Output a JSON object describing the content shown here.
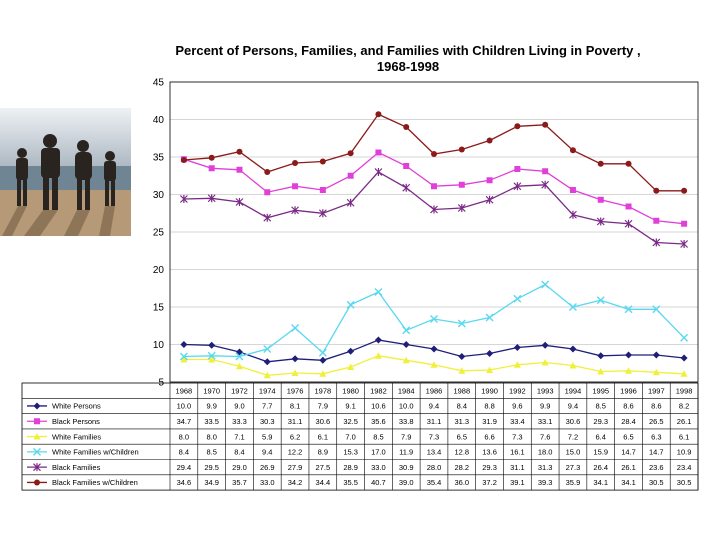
{
  "chart_data": {
    "type": "line",
    "title_line1": "Percent of Persons, Families, and Families with Children Living in Poverty ,",
    "title_line2": "1968-1998",
    "xlabel": "",
    "ylabel": "",
    "ylim": [
      5,
      45
    ],
    "yticks": [
      "45",
      "40",
      "35",
      "30",
      "25",
      "20",
      "15",
      "10",
      "5"
    ],
    "categories": [
      "1968",
      "1970",
      "1972",
      "1974",
      "1976",
      "1978",
      "1980",
      "1982",
      "1984",
      "1986",
      "1988",
      "1990",
      "1992",
      "1993",
      "1994",
      "1995",
      "1996",
      "1997",
      "1998"
    ],
    "series": [
      {
        "name": "White Persons",
        "color": "#1f1f7a",
        "marker": "diamond",
        "values": [
          10.0,
          9.9,
          9.0,
          7.7,
          8.1,
          7.9,
          9.1,
          10.6,
          10.0,
          9.4,
          8.4,
          8.8,
          9.6,
          9.9,
          9.4,
          8.5,
          8.6,
          8.6,
          8.2
        ],
        "labels": [
          "10.0",
          "9.9",
          "9.0",
          "7.7",
          "8.1",
          "7.9",
          "9.1",
          "10.6",
          "10.0",
          "9.4",
          "8.4",
          "8.8",
          "9.6",
          "9.9",
          "9.4",
          "8.5",
          "8.6",
          "8.6",
          "8.2"
        ]
      },
      {
        "name": "Black Persons",
        "color": "#e040d8",
        "marker": "square",
        "values": [
          34.7,
          33.5,
          33.3,
          30.3,
          31.1,
          30.6,
          32.5,
          35.6,
          33.8,
          31.1,
          31.3,
          31.9,
          33.4,
          33.1,
          30.6,
          29.3,
          28.4,
          26.5,
          26.1
        ],
        "labels": [
          "34.7",
          "33.5",
          "33.3",
          "30.3",
          "31.1",
          "30.6",
          "32.5",
          "35.6",
          "33.8",
          "31.1",
          "31.3",
          "31.9",
          "33.4",
          "33.1",
          "30.6",
          "29.3",
          "28.4",
          "26.5",
          "26.1"
        ]
      },
      {
        "name": "White Families",
        "color": "#f0f03a",
        "marker": "triangle",
        "values": [
          8.0,
          8.0,
          7.1,
          5.9,
          6.2,
          6.1,
          7.0,
          8.5,
          7.9,
          7.3,
          6.5,
          6.6,
          7.3,
          7.6,
          7.2,
          6.4,
          6.5,
          6.3,
          6.1
        ],
        "labels": [
          "8.0",
          "8.0",
          "7.1",
          "5.9",
          "6.2",
          "6.1",
          "7.0",
          "8.5",
          "7.9",
          "7.3",
          "6.5",
          "6.6",
          "7.3",
          "7.6",
          "7.2",
          "6.4",
          "6.5",
          "6.3",
          "6.1"
        ]
      },
      {
        "name": "White Families w/Children",
        "color": "#5ad8f0",
        "marker": "x",
        "values": [
          8.4,
          8.5,
          8.4,
          9.4,
          12.2,
          8.9,
          15.3,
          17.0,
          11.9,
          13.4,
          12.8,
          13.6,
          16.1,
          18.0,
          15.0,
          15.9,
          14.7,
          14.7,
          10.9
        ],
        "labels": [
          "8.4",
          "8.5",
          "8.4",
          "9.4",
          "12.2",
          "8.9",
          "15.3",
          "17.0",
          "11.9",
          "13.4",
          "12.8",
          "13.6",
          "16.1",
          "18.0",
          "15.0",
          "15.9",
          "14.7",
          "14.7",
          "10.9"
        ]
      },
      {
        "name": "Black Families",
        "color": "#7a2a86",
        "marker": "star",
        "values": [
          29.4,
          29.5,
          29.0,
          26.9,
          27.9,
          27.5,
          28.9,
          33.0,
          30.9,
          28.0,
          28.2,
          29.3,
          31.1,
          31.3,
          27.3,
          26.4,
          26.1,
          23.6,
          23.4
        ],
        "labels": [
          "29.4",
          "29.5",
          "29.0",
          "26.9",
          "27.9",
          "27.5",
          "28.9",
          "33.0",
          "30.9",
          "28.0",
          "28.2",
          "29.3",
          "31.1",
          "31.3",
          "27.3",
          "26.4",
          "26.1",
          "23.6",
          "23.4"
        ]
      },
      {
        "name": "Black Families w/Children",
        "color": "#8b1a1a",
        "marker": "circle",
        "values": [
          34.6,
          34.9,
          35.7,
          33.0,
          34.2,
          34.4,
          35.5,
          40.7,
          39.0,
          35.4,
          36.0,
          37.2,
          39.1,
          39.3,
          35.9,
          34.1,
          34.1,
          30.5,
          30.5
        ],
        "labels": [
          "34.6",
          "34.9",
          "35.7",
          "33.0",
          "34.2",
          "34.4",
          "35.5",
          "40.7",
          "39.0",
          "35.4",
          "36.0",
          "37.2",
          "39.1",
          "39.3",
          "35.9",
          "34.1",
          "34.1",
          "30.5",
          "30.5"
        ]
      }
    ],
    "grid": true,
    "legend": "table-below"
  },
  "photo": {
    "sky": "#c9d3dd",
    "sea": "#6f8594",
    "sand": "#b69a77"
  }
}
